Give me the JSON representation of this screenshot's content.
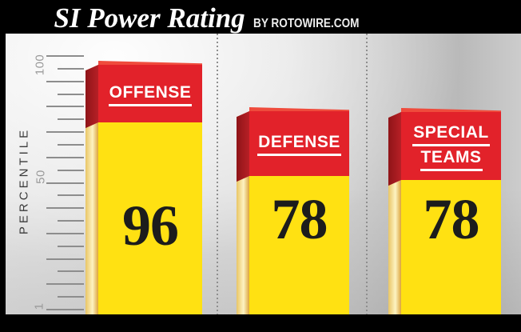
{
  "header": {
    "title": "SI Power Rating",
    "byline": "BY ROTOWIRE.COM"
  },
  "axis": {
    "label": "PERCENTILE",
    "tick_labels": [
      "100",
      "50",
      "1"
    ]
  },
  "bars": [
    {
      "name": "offense",
      "label": "OFFENSE",
      "label2": "",
      "value": "96"
    },
    {
      "name": "defense",
      "label": "DEFENSE",
      "label2": "",
      "value": "78"
    },
    {
      "name": "special-teams",
      "label": "SPECIAL",
      "label2": "TEAMS",
      "value": "78"
    }
  ],
  "colors": {
    "header_bg": "#000000",
    "bar_front_red": "#e2222a",
    "bar_side_red_dark": "#8f1418",
    "bar_side_red": "#b72026",
    "bar_roof_red": "#ef4b3c",
    "bar_front_yellow": "#ffe112",
    "bar_side_yellow_edge": "#e9c565",
    "bar_side_yellow_light": "#fdf3c2",
    "bar_side_yellow_dark": "#dca43c",
    "label_text": "#ffffff",
    "value_text": "#1c1c1c",
    "tick_color": "#8d8d8d"
  },
  "chart_data": {
    "type": "bar",
    "categories": [
      "OFFENSE",
      "DEFENSE",
      "SPECIAL TEAMS"
    ],
    "values": [
      96,
      78,
      78
    ],
    "title": "SI Power Rating",
    "source": "BY ROTOWIRE.COM",
    "xlabel": "",
    "ylabel": "PERCENTILE",
    "ylim": [
      1,
      100
    ],
    "yticks": [
      1,
      50,
      100
    ],
    "grid": false,
    "legend": false
  }
}
